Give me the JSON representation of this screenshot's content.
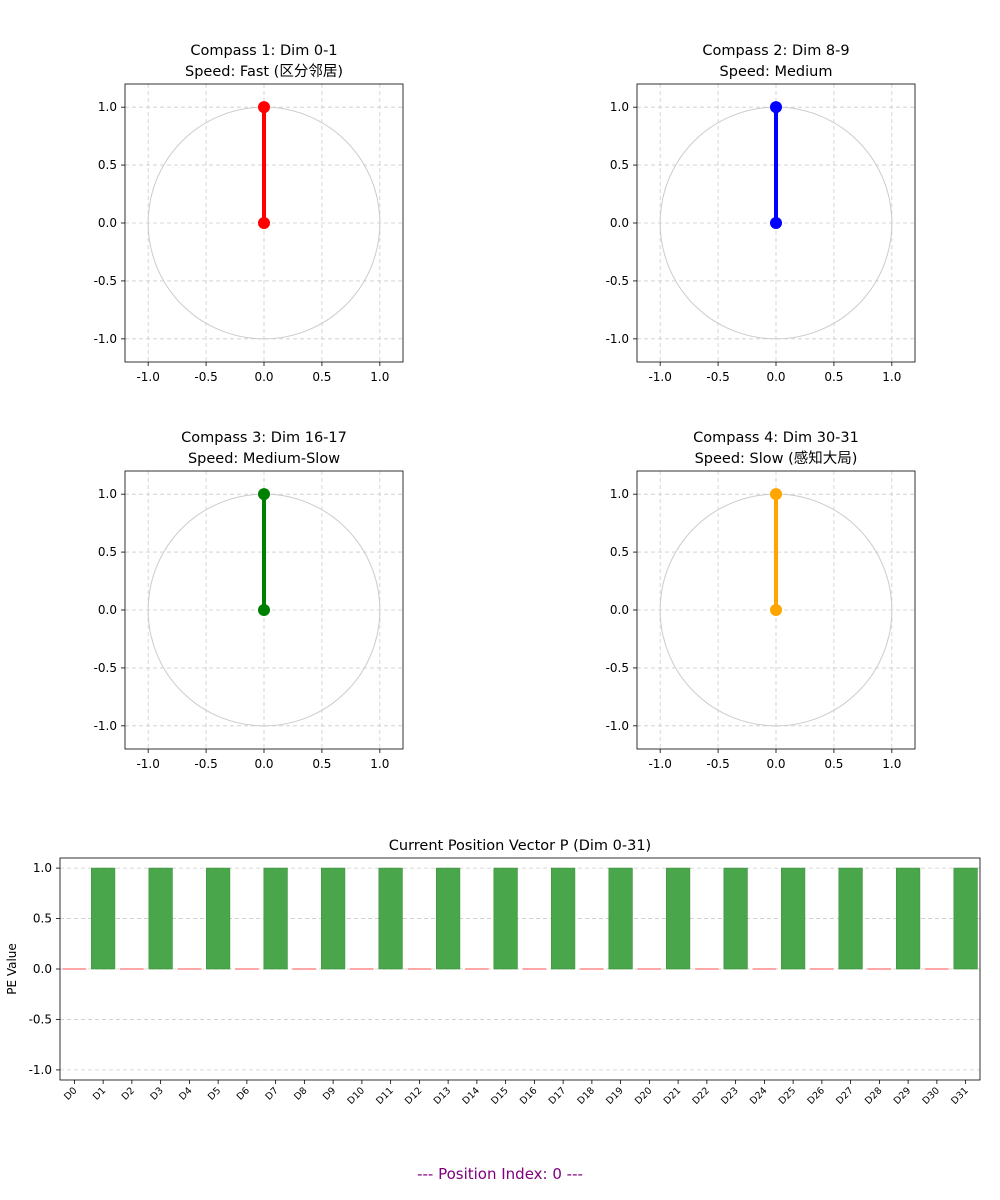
{
  "colors": {
    "compass": [
      "#ff0000",
      "#0000ff",
      "#008000",
      "#ffa500"
    ],
    "bar_positive": "#4aa64a",
    "bar_zero": "#ff7070",
    "grid": "#cccccc",
    "circle": "#cccccc",
    "footer": "#800080"
  },
  "footer_text": "--- Position Index: 0 ---",
  "chart_data": [
    {
      "type": "line",
      "title": "Compass 1: Dim 0-1",
      "subtitle": "Speed: Fast (区分邻居)",
      "xlim": [
        -1.2,
        1.2
      ],
      "ylim": [
        -1.2,
        1.2
      ],
      "xticks": [
        "-1.0",
        "-0.5",
        "0.0",
        "0.5",
        "1.0"
      ],
      "yticks": [
        "1.0",
        "0.5",
        "0.0",
        "-0.5",
        "-1.0"
      ],
      "grid": true,
      "unit_circle": true,
      "vector": {
        "x": [
          0,
          0
        ],
        "y": [
          0,
          1
        ]
      }
    },
    {
      "type": "line",
      "title": "Compass 2: Dim 8-9",
      "subtitle": "Speed: Medium",
      "xlim": [
        -1.2,
        1.2
      ],
      "ylim": [
        -1.2,
        1.2
      ],
      "xticks": [
        "-1.0",
        "-0.5",
        "0.0",
        "0.5",
        "1.0"
      ],
      "yticks": [
        "1.0",
        "0.5",
        "0.0",
        "-0.5",
        "-1.0"
      ],
      "grid": true,
      "unit_circle": true,
      "vector": {
        "x": [
          0,
          0
        ],
        "y": [
          0,
          1
        ]
      }
    },
    {
      "type": "line",
      "title": "Compass 3: Dim 16-17",
      "subtitle": "Speed: Medium-Slow",
      "xlim": [
        -1.2,
        1.2
      ],
      "ylim": [
        -1.2,
        1.2
      ],
      "xticks": [
        "-1.0",
        "-0.5",
        "0.0",
        "0.5",
        "1.0"
      ],
      "yticks": [
        "1.0",
        "0.5",
        "0.0",
        "-0.5",
        "-1.0"
      ],
      "grid": true,
      "unit_circle": true,
      "vector": {
        "x": [
          0,
          0
        ],
        "y": [
          0,
          1
        ]
      }
    },
    {
      "type": "line",
      "title": "Compass 4: Dim 30-31",
      "subtitle": "Speed: Slow (感知大局)",
      "xlim": [
        -1.2,
        1.2
      ],
      "ylim": [
        -1.2,
        1.2
      ],
      "xticks": [
        "-1.0",
        "-0.5",
        "0.0",
        "0.5",
        "1.0"
      ],
      "yticks": [
        "1.0",
        "0.5",
        "0.0",
        "-0.5",
        "-1.0"
      ],
      "grid": true,
      "unit_circle": true,
      "vector": {
        "x": [
          0,
          0
        ],
        "y": [
          0,
          1
        ]
      }
    },
    {
      "type": "bar",
      "title": "Current Position Vector P (Dim 0-31)",
      "ylabel": "PE Value",
      "ylim": [
        -1.1,
        1.1
      ],
      "yticks": [
        "1.0",
        "0.5",
        "0.0",
        "-0.5",
        "-1.0"
      ],
      "grid": true,
      "categories": [
        "D0",
        "D1",
        "D2",
        "D3",
        "D4",
        "D5",
        "D6",
        "D7",
        "D8",
        "D9",
        "D10",
        "D11",
        "D12",
        "D13",
        "D14",
        "D15",
        "D16",
        "D17",
        "D18",
        "D19",
        "D20",
        "D21",
        "D22",
        "D23",
        "D24",
        "D25",
        "D26",
        "D27",
        "D28",
        "D29",
        "D30",
        "D31"
      ],
      "values": [
        0,
        1,
        0,
        1,
        0,
        1,
        0,
        1,
        0,
        1,
        0,
        1,
        0,
        1,
        0,
        1,
        0,
        1,
        0,
        1,
        0,
        1,
        0,
        1,
        0,
        1,
        0,
        1,
        0,
        1,
        0,
        1
      ]
    }
  ]
}
